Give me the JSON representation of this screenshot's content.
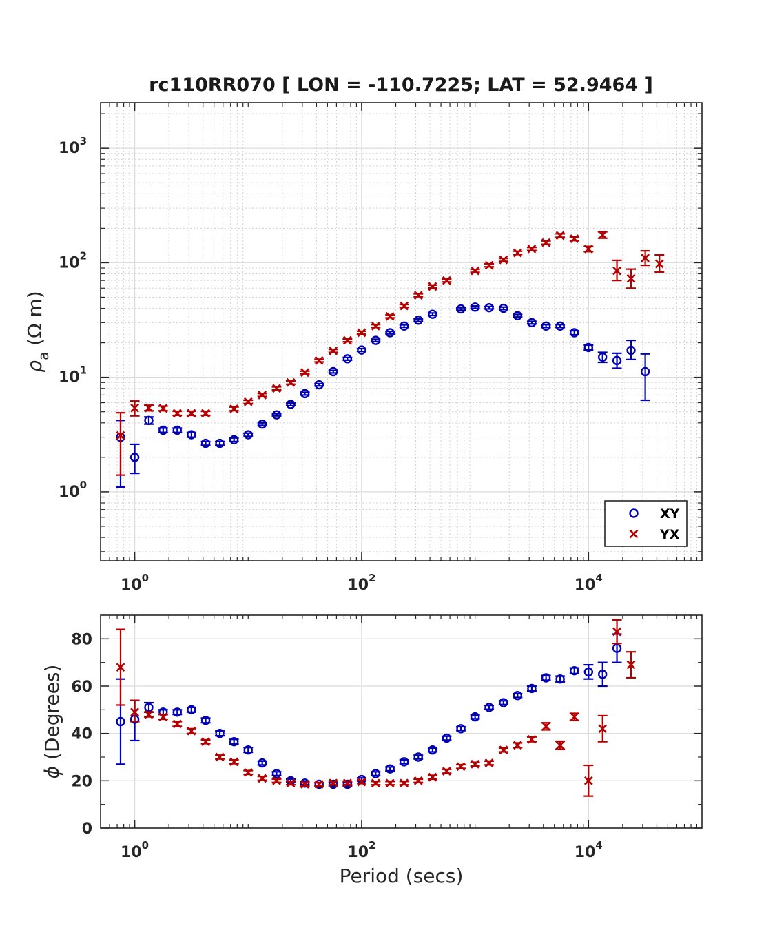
{
  "chart_data": [
    {
      "panel": "apparent-resistivity",
      "type": "scatter",
      "title": "rc110RR070 [ LON = -110.7225; LAT = 52.9464 ]",
      "xscale": "log",
      "yscale": "log",
      "xlim": [
        0.5,
        100000
      ],
      "ylim": [
        0.25,
        2500
      ],
      "xlabel": "",
      "ylabel_symbol": "ρ",
      "ylabel_sub": "a",
      "ylabel_unit": "(Ω m)",
      "xticks": [
        {
          "base": "10",
          "exp": "0",
          "value": 1
        },
        {
          "base": "10",
          "exp": "2",
          "value": 100
        },
        {
          "base": "10",
          "exp": "4",
          "value": 10000
        }
      ],
      "yticks": [
        {
          "base": "10",
          "exp": "0",
          "value": 1
        },
        {
          "base": "10",
          "exp": "1",
          "value": 10
        },
        {
          "base": "10",
          "exp": "2",
          "value": 100
        },
        {
          "base": "10",
          "exp": "3",
          "value": 1000
        }
      ],
      "grid": true,
      "minor_grid": true,
      "legend": {
        "position": "bottom-right",
        "entries": [
          "XY",
          "YX"
        ]
      },
      "series": [
        {
          "name": "XY",
          "marker": "circle",
          "color": "#0000b4",
          "points": [
            [
              0.75,
              3.0,
              1.1,
              4.2
            ],
            [
              1.0,
              2.0,
              1.45,
              2.6
            ],
            [
              1.33,
              4.2,
              3.9,
              4.5
            ],
            [
              1.78,
              3.45,
              3.3,
              3.6
            ],
            [
              2.37,
              3.45,
              3.3,
              3.6
            ],
            [
              3.16,
              3.15,
              3.0,
              3.3
            ],
            [
              4.22,
              2.65,
              2.55,
              2.75
            ],
            [
              5.62,
              2.65,
              2.55,
              2.75
            ],
            [
              7.5,
              2.85,
              2.75,
              2.95
            ],
            [
              10.0,
              3.15,
              3.05,
              3.25
            ],
            [
              13.3,
              3.9,
              3.8,
              4.0
            ],
            [
              17.8,
              4.7,
              4.6,
              4.8
            ],
            [
              23.7,
              5.8,
              5.65,
              5.95
            ],
            [
              31.6,
              7.2,
              7.0,
              7.4
            ],
            [
              42.2,
              8.6,
              8.4,
              8.8
            ],
            [
              56.2,
              11.2,
              10.9,
              11.5
            ],
            [
              75.0,
              14.5,
              14.1,
              14.9
            ],
            [
              100.0,
              17.3,
              16.8,
              17.8
            ],
            [
              133,
              21.0,
              20.5,
              21.5
            ],
            [
              178,
              24.5,
              23.9,
              25.1
            ],
            [
              237,
              28.0,
              27.3,
              28.7
            ],
            [
              316,
              31.5,
              30.7,
              32.3
            ],
            [
              422,
              35.5,
              34.6,
              36.4
            ],
            [
              750,
              39.5,
              38.5,
              40.5
            ],
            [
              1000,
              41.0,
              40.0,
              42.0
            ],
            [
              1330,
              40.5,
              39.5,
              41.5
            ],
            [
              1780,
              40.0,
              39.0,
              41.0
            ],
            [
              2370,
              34.5,
              33.6,
              35.4
            ],
            [
              3160,
              30.0,
              29.2,
              30.8
            ],
            [
              4220,
              28.0,
              27.2,
              28.8
            ],
            [
              5620,
              28.0,
              27.2,
              28.8
            ],
            [
              7500,
              24.5,
              23.5,
              25.5
            ],
            [
              10000,
              18.2,
              17.3,
              19.1
            ],
            [
              13300,
              15.0,
              13.5,
              16.5
            ],
            [
              17800,
              14.0,
              12.0,
              16.2
            ],
            [
              23700,
              17.2,
              14.3,
              21.0
            ],
            [
              31600,
              11.2,
              6.3,
              16.0
            ]
          ]
        },
        {
          "name": "YX",
          "marker": "cross",
          "color": "#b40000",
          "points": [
            [
              0.75,
              3.1,
              1.4,
              4.9
            ],
            [
              1.0,
              5.4,
              4.6,
              6.2
            ],
            [
              1.33,
              5.4,
              5.1,
              5.7
            ],
            [
              1.78,
              5.35,
              5.1,
              5.6
            ],
            [
              2.37,
              4.85,
              4.65,
              5.05
            ],
            [
              3.16,
              4.85,
              4.65,
              5.05
            ],
            [
              4.22,
              4.85,
              4.65,
              5.05
            ],
            [
              7.5,
              5.3,
              5.1,
              5.5
            ],
            [
              10.0,
              6.1,
              5.9,
              6.3
            ],
            [
              13.3,
              7.0,
              6.8,
              7.2
            ],
            [
              17.8,
              8.0,
              7.75,
              8.25
            ],
            [
              23.7,
              9.0,
              8.7,
              9.3
            ],
            [
              31.6,
              11.0,
              10.7,
              11.3
            ],
            [
              42.2,
              14.0,
              13.6,
              14.4
            ],
            [
              56.2,
              17.0,
              16.5,
              17.5
            ],
            [
              75.0,
              21.0,
              20.4,
              21.6
            ],
            [
              100.0,
              24.5,
              23.8,
              25.2
            ],
            [
              133,
              28.0,
              27.2,
              28.8
            ],
            [
              178,
              34.0,
              33.0,
              35.0
            ],
            [
              237,
              42.0,
              40.8,
              43.2
            ],
            [
              316,
              52.0,
              50.5,
              53.5
            ],
            [
              422,
              62.0,
              60.2,
              63.8
            ],
            [
              562,
              70.0,
              68.0,
              72.0
            ],
            [
              1000,
              85.0,
              82.5,
              87.5
            ],
            [
              1330,
              95.0,
              92.2,
              97.8
            ],
            [
              1780,
              106.0,
              103.0,
              109.0
            ],
            [
              2370,
              122.0,
              118.0,
              126.0
            ],
            [
              3160,
              132.0,
              128.0,
              136.0
            ],
            [
              4220,
              150.0,
              145.0,
              155.0
            ],
            [
              5620,
              173.0,
              167.0,
              179.0
            ],
            [
              7500,
              162.0,
              156.0,
              168.0
            ],
            [
              10000,
              132.0,
              125.0,
              139.0
            ],
            [
              13300,
              175.0,
              164.0,
              186.0
            ],
            [
              17800,
              85.0,
              70.0,
              105.0
            ],
            [
              23700,
              73.0,
              60.0,
              88.0
            ],
            [
              31600,
              110.0,
              95.0,
              127.0
            ],
            [
              42200,
              98.0,
              83.0,
              117.0
            ]
          ]
        }
      ]
    },
    {
      "panel": "phase",
      "type": "scatter",
      "xscale": "log",
      "yscale": "linear",
      "xlim": [
        0.5,
        100000
      ],
      "ylim": [
        0,
        90
      ],
      "xlabel": "Period (secs)",
      "ylabel_symbol": "ϕ",
      "ylabel_unit": "(Degrees)",
      "xticks": [
        {
          "base": "10",
          "exp": "0",
          "value": 1
        },
        {
          "base": "10",
          "exp": "2",
          "value": 100
        },
        {
          "base": "10",
          "exp": "4",
          "value": 10000
        }
      ],
      "yticks": [
        {
          "label": "0",
          "value": 0
        },
        {
          "label": "20",
          "value": 20
        },
        {
          "label": "40",
          "value": 40
        },
        {
          "label": "60",
          "value": 60
        },
        {
          "label": "80",
          "value": 80
        }
      ],
      "grid": true,
      "series": [
        {
          "name": "XY",
          "marker": "circle",
          "color": "#0000b4",
          "points": [
            [
              0.75,
              45,
              27,
              63
            ],
            [
              1.0,
              46,
              37,
              54
            ],
            [
              1.33,
              51,
              49,
              53
            ],
            [
              1.78,
              49,
              48,
              50
            ],
            [
              2.37,
              49,
              48,
              50
            ],
            [
              3.16,
              50,
              49,
              51
            ],
            [
              4.22,
              45.5,
              44.5,
              46.5
            ],
            [
              5.62,
              40,
              39,
              41
            ],
            [
              7.5,
              36.5,
              35.5,
              37.5
            ],
            [
              10.0,
              33,
              32,
              34
            ],
            [
              13.3,
              27.5,
              26.7,
              28.3
            ],
            [
              17.8,
              23,
              22.2,
              23.8
            ],
            [
              23.7,
              20,
              19.3,
              20.7
            ],
            [
              31.6,
              19,
              18.3,
              19.7
            ],
            [
              42.2,
              18.5,
              17.8,
              19.2
            ],
            [
              56.2,
              18.5,
              17.8,
              19.2
            ],
            [
              75.0,
              18.5,
              17.8,
              19.2
            ],
            [
              100.0,
              20.5,
              19.8,
              21.2
            ],
            [
              133,
              23,
              22.2,
              23.8
            ],
            [
              178,
              25,
              24.2,
              25.8
            ],
            [
              237,
              28,
              27.2,
              28.8
            ],
            [
              316,
              30,
              29.2,
              30.8
            ],
            [
              422,
              33,
              32.2,
              33.8
            ],
            [
              562,
              38,
              37.2,
              38.8
            ],
            [
              750,
              42,
              41.2,
              42.8
            ],
            [
              1000,
              47,
              46.2,
              47.8
            ],
            [
              1330,
              51,
              50.2,
              51.8
            ],
            [
              1780,
              53,
              52.2,
              53.8
            ],
            [
              2370,
              56,
              55.2,
              56.8
            ],
            [
              3160,
              59,
              58,
              60
            ],
            [
              4220,
              63.5,
              62.5,
              64.5
            ],
            [
              5620,
              63,
              61.8,
              64.2
            ],
            [
              7500,
              66.5,
              65.3,
              67.7
            ],
            [
              10000,
              66,
              63,
              69
            ],
            [
              13300,
              65,
              60,
              70
            ],
            [
              17800,
              76,
              70,
              82
            ]
          ]
        },
        {
          "name": "YX",
          "marker": "cross",
          "color": "#b40000",
          "points": [
            [
              0.75,
              68,
              52,
              84
            ],
            [
              1.0,
              49,
              45,
              54
            ],
            [
              1.33,
              48,
              47,
              49
            ],
            [
              1.78,
              47,
              46,
              48
            ],
            [
              2.37,
              44,
              43,
              45
            ],
            [
              3.16,
              41,
              40,
              42
            ],
            [
              4.22,
              36.5,
              35.7,
              37.3
            ],
            [
              5.62,
              30,
              29.2,
              30.8
            ],
            [
              7.5,
              28,
              27.2,
              28.8
            ],
            [
              10.0,
              23.5,
              22.7,
              24.3
            ],
            [
              13.3,
              21,
              20.2,
              21.8
            ],
            [
              17.8,
              20,
              19.3,
              20.7
            ],
            [
              23.7,
              19,
              18.3,
              19.7
            ],
            [
              31.6,
              18.5,
              17.8,
              19.2
            ],
            [
              42.2,
              18.5,
              17.8,
              19.2
            ],
            [
              56.2,
              19,
              18.3,
              19.7
            ],
            [
              75.0,
              19,
              18.3,
              19.7
            ],
            [
              100.0,
              19.5,
              18.8,
              20.2
            ],
            [
              133,
              19,
              18.3,
              19.7
            ],
            [
              178,
              19,
              18.3,
              19.7
            ],
            [
              237,
              19,
              18.3,
              19.7
            ],
            [
              316,
              20,
              19.3,
              20.7
            ],
            [
              422,
              21.5,
              20.7,
              22.3
            ],
            [
              562,
              24,
              23.2,
              24.8
            ],
            [
              750,
              26,
              25.2,
              26.8
            ],
            [
              1000,
              27,
              26.2,
              27.8
            ],
            [
              1330,
              27.5,
              26.7,
              28.3
            ],
            [
              1780,
              33,
              32.2,
              33.8
            ],
            [
              2370,
              35,
              34,
              36
            ],
            [
              3160,
              37.5,
              36.5,
              38.5
            ],
            [
              4220,
              43,
              41.5,
              44.5
            ],
            [
              5620,
              35,
              33.3,
              36.7
            ],
            [
              7500,
              47,
              45.5,
              48.5
            ],
            [
              10000,
              20,
              13.5,
              26.5
            ],
            [
              13300,
              42,
              36.5,
              47.5
            ],
            [
              17800,
              83,
              78,
              88
            ],
            [
              23700,
              69,
              63.5,
              74.5
            ]
          ]
        }
      ]
    }
  ]
}
